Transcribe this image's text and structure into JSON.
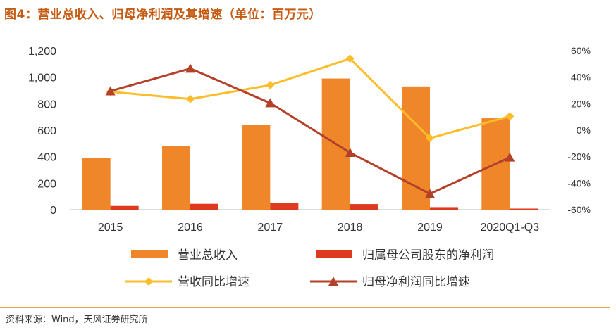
{
  "header": {
    "title": "图4：营业总收入、归母净利润及其增速（单位：百万元）"
  },
  "footer": {
    "source": "资料来源：Wind，天风证券研究所"
  },
  "colors": {
    "title": "#c55a11",
    "revenue_bar": "#f0862a",
    "netprofit_bar": "#de3a20",
    "revenue_growth_line": "#fbbd2a",
    "netprofit_growth_line": "#b5402a",
    "rule": "#e8a44a"
  },
  "chart_data": {
    "type": "bar",
    "categories": [
      "2015",
      "2016",
      "2017",
      "2018",
      "2019",
      "2020Q1-Q3"
    ],
    "y_left": {
      "ylim": [
        0,
        1200
      ],
      "ticks": [
        0,
        200,
        400,
        600,
        800,
        1000,
        1200
      ],
      "tick_labels": [
        "0",
        "200",
        "400",
        "600",
        "800",
        "1,000",
        "1,200"
      ]
    },
    "y_right": {
      "ylim": [
        -60,
        60
      ],
      "ticks": [
        -60,
        -40,
        -20,
        0,
        20,
        40,
        60
      ],
      "tick_labels": [
        "-60%",
        "-40%",
        "-20%",
        "0%",
        "20%",
        "40%",
        "60%"
      ]
    },
    "series": [
      {
        "name": "营业总收入",
        "kind": "bar",
        "axis": "left",
        "values": [
          390,
          480,
          640,
          990,
          930,
          690
        ]
      },
      {
        "name": "归属母公司股东的净利润",
        "kind": "bar",
        "axis": "left",
        "values": [
          28,
          44,
          53,
          42,
          19,
          8
        ]
      },
      {
        "name": "营收同比增速",
        "kind": "line",
        "marker": "diamond",
        "axis": "right",
        "values": [
          29,
          23.5,
          34,
          54,
          -6,
          10.5
        ]
      },
      {
        "name": "归母净利润同比增速",
        "kind": "line",
        "marker": "triangle",
        "axis": "right",
        "values": [
          29.5,
          46.5,
          20.5,
          -17,
          -48,
          -20.5
        ]
      }
    ],
    "legend": {
      "placement": "bottom",
      "columns": 2
    },
    "grid": false
  }
}
